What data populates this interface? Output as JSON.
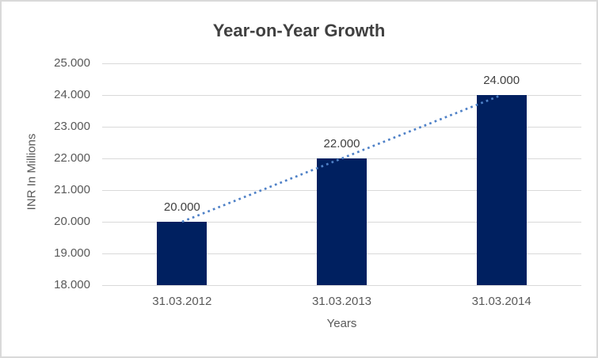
{
  "chart_data": {
    "type": "bar",
    "title": "Year-on-Year Growth",
    "xlabel": "Years",
    "ylabel": "INR In Millions",
    "categories": [
      "31.03.2012",
      "31.03.2013",
      "31.03.2014"
    ],
    "values": [
      20000,
      22000,
      24000
    ],
    "value_labels": [
      "20.000",
      "22.000",
      "24.000"
    ],
    "ylim": [
      18000,
      25000
    ],
    "y_tick_values": [
      18000,
      19000,
      20000,
      21000,
      22000,
      23000,
      24000,
      25000
    ],
    "y_tick_labels": [
      "18.000",
      "19.000",
      "20.000",
      "21.000",
      "22.000",
      "23.000",
      "24.000",
      "25.000"
    ],
    "grid": true,
    "legend": "none",
    "trendline": {
      "style": "dotted",
      "from_category_index": 0,
      "to_category_index": 2
    }
  },
  "colors": {
    "bar": "#002060",
    "trendline": "#4f81c7",
    "title_text": "#404040",
    "axis_text": "#595959",
    "data_label_text": "#404040",
    "gridline": "#d9d9d9",
    "border": "#d9d9d9",
    "background": "#ffffff"
  }
}
